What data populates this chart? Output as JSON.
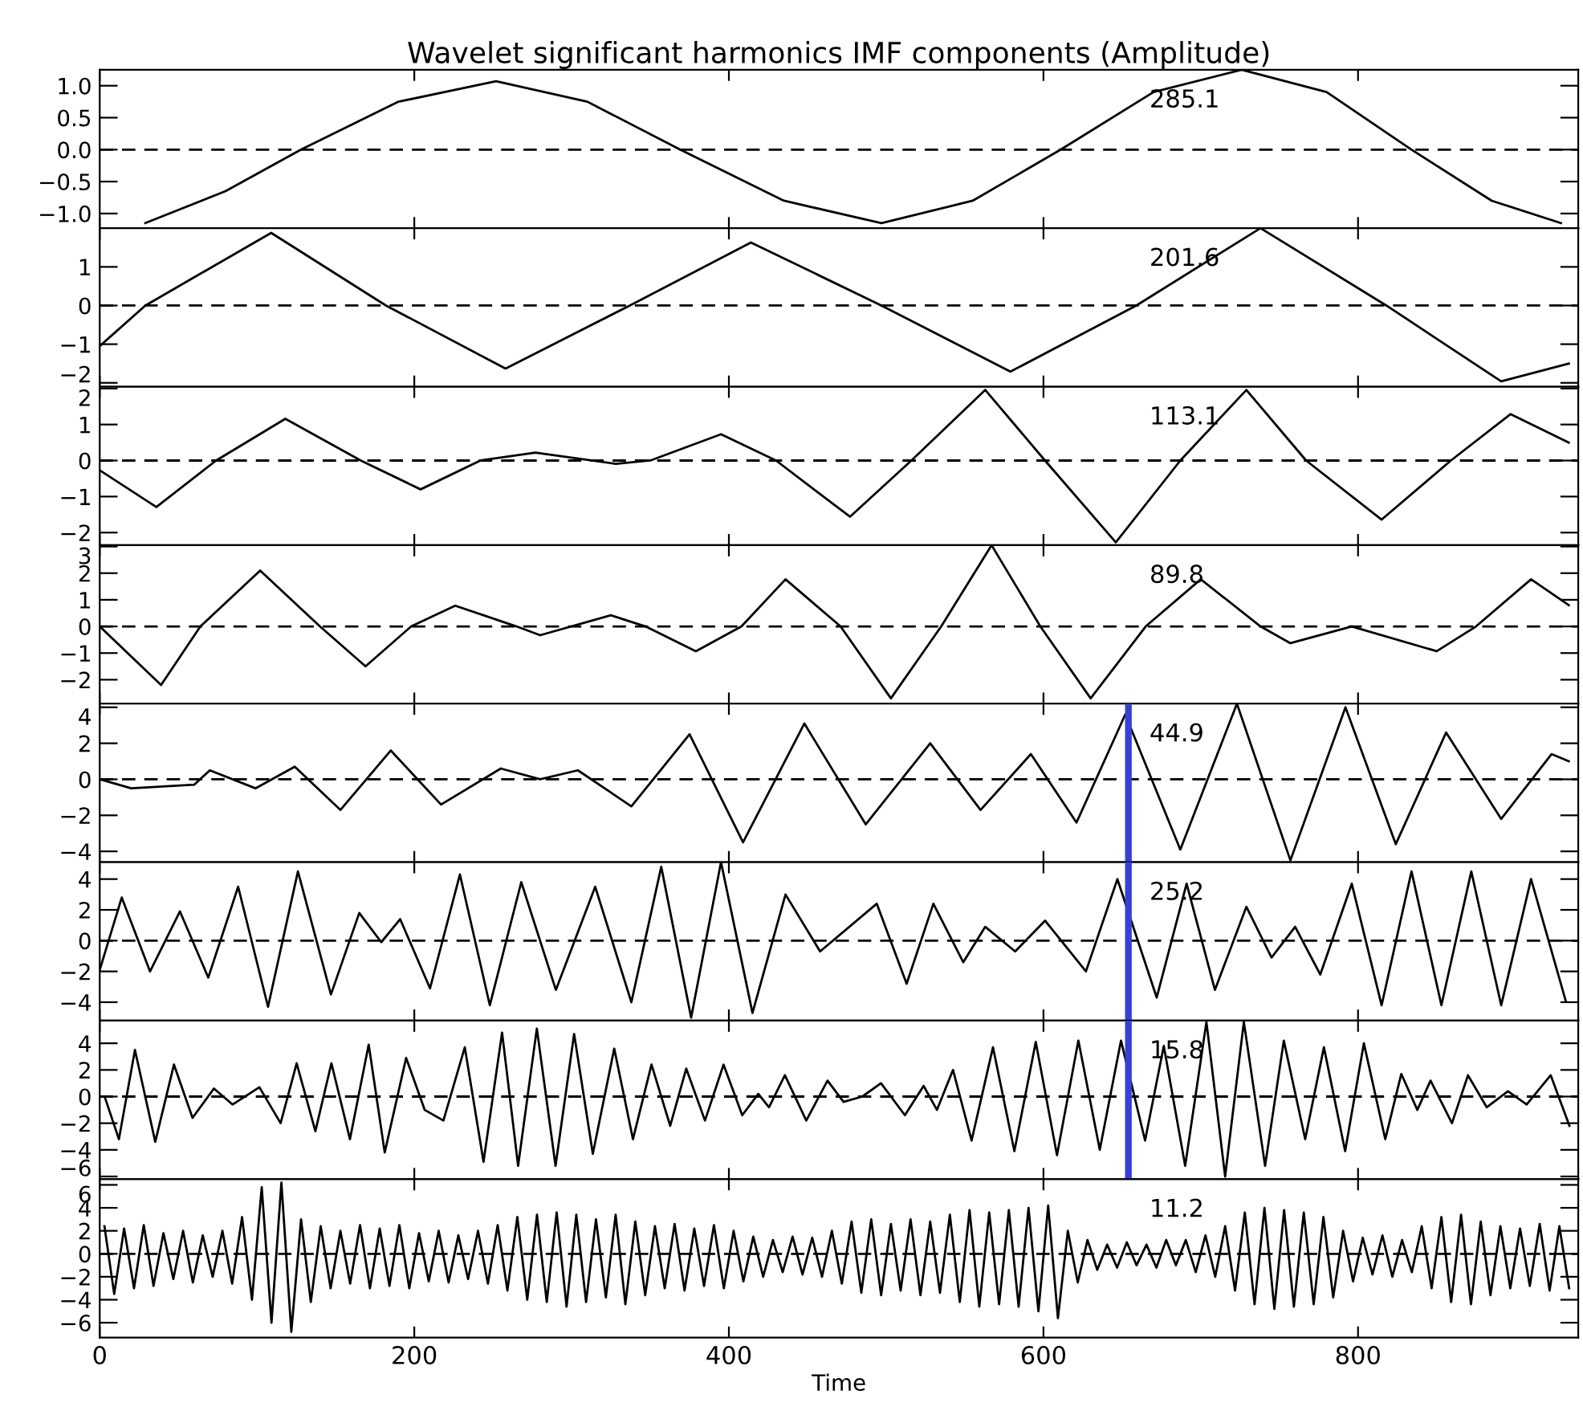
{
  "chart_data": [
    {
      "type": "line",
      "title": "Wavelet significant harmonics IMF components (Amplitude)",
      "annotations": [
        "285.1"
      ],
      "xlim": [
        0,
        940
      ],
      "xticks": [
        0,
        200,
        400,
        600,
        800
      ],
      "ylim": [
        -1.23,
        1.25
      ],
      "yticks": [
        {
          "value": -1.0,
          "label": "−1.0"
        },
        {
          "value": -0.5,
          "label": "−0.5"
        },
        {
          "value": 0,
          "label": "0.0"
        },
        0.5,
        {
          "value": 1,
          "label": "1.0"
        }
      ],
      "tick_labels": "y",
      "ref_lines": [
        {
          "axis": "y",
          "value": 0,
          "color": "#000000",
          "line_style": "dashed"
        }
      ],
      "series": [
        {
          "color": "#000000",
          "x": [
            29,
            80,
            128,
            190,
            252,
            310,
            369,
            435,
            497,
            555,
            611,
            670,
            726,
            780,
            834,
            885,
            929
          ],
          "values": [
            -1.15,
            -0.65,
            0,
            0.75,
            1.07,
            0.75,
            0,
            -0.8,
            -1.15,
            -0.8,
            0,
            0.9,
            1.25,
            0.9,
            0,
            -0.8,
            -1.15
          ]
        }
      ]
    },
    {
      "type": "line",
      "annotations": [
        "201.6"
      ],
      "xlim": [
        0,
        940
      ],
      "xticks": [
        0,
        200,
        400,
        600,
        800
      ],
      "ylim": [
        -2.1,
        2.0
      ],
      "yticks": [
        {
          "value": -2,
          "label": "−2"
        },
        {
          "value": -1,
          "label": "−1"
        },
        0,
        1
      ],
      "tick_labels": "y",
      "ref_lines": [
        {
          "axis": "y",
          "value": 0,
          "color": "#000000",
          "line_style": "dashed"
        }
      ],
      "series": [
        {
          "color": "#000000",
          "x": [
            0,
            29,
            109,
            182,
            258,
            337,
            414,
            497,
            579,
            659,
            738,
            818,
            891,
            934
          ],
          "values": [
            -1.05,
            0,
            1.88,
            0,
            -1.63,
            0,
            1.63,
            0,
            -1.71,
            0,
            2.0,
            0,
            -1.96,
            -1.5
          ]
        }
      ]
    },
    {
      "type": "line",
      "annotations": [
        "113.1"
      ],
      "xlim": [
        0,
        940
      ],
      "xticks": [
        0,
        200,
        400,
        600,
        800
      ],
      "ylim": [
        -2.35,
        2.05
      ],
      "yticks": [
        {
          "value": -2,
          "label": "−2"
        },
        {
          "value": -1,
          "label": "−1"
        },
        0,
        1,
        2
      ],
      "tick_labels": "y",
      "ref_lines": [
        {
          "axis": "y",
          "value": 0,
          "color": "#000000",
          "line_style": "dashed"
        }
      ],
      "series": [
        {
          "color": "#000000",
          "x": [
            0,
            36,
            74,
            118,
            166,
            204,
            242,
            277,
            328,
            350,
            395,
            430,
            477,
            516,
            563,
            601,
            646,
            687,
            729,
            767,
            815,
            859,
            897,
            934
          ],
          "values": [
            -0.27,
            -1.29,
            0,
            1.16,
            0,
            -0.8,
            0,
            0.22,
            -0.09,
            0,
            0.73,
            0,
            -1.56,
            0,
            1.96,
            0,
            -2.27,
            0,
            1.96,
            0,
            -1.64,
            0,
            1.29,
            0.5
          ]
        }
      ]
    },
    {
      "type": "line",
      "annotations": [
        "89.8"
      ],
      "xlim": [
        0,
        940
      ],
      "xticks": [
        0,
        200,
        400,
        600,
        800
      ],
      "ylim": [
        -2.9,
        3.05
      ],
      "yticks": [
        {
          "value": -2,
          "label": "−2"
        },
        {
          "value": -1,
          "label": "−1"
        },
        0,
        1,
        2,
        3
      ],
      "tick_labels": "y",
      "ref_lines": [
        {
          "axis": "y",
          "value": 0,
          "color": "#000000",
          "line_style": "dashed"
        }
      ],
      "series": [
        {
          "color": "#000000",
          "x": [
            0,
            39,
            64,
            102,
            140,
            169,
            198,
            226,
            265,
            280,
            325,
            347,
            379,
            408,
            436,
            471,
            503,
            535,
            567,
            598,
            630,
            665,
            700,
            738,
            757,
            796,
            850,
            875,
            910,
            934
          ],
          "values": [
            0,
            -2.2,
            0,
            2.1,
            0,
            -1.5,
            0,
            0.78,
            0,
            -0.33,
            0.42,
            0,
            -0.93,
            0,
            1.77,
            0,
            -2.7,
            0,
            3.05,
            0,
            -2.7,
            0,
            1.77,
            0,
            -0.63,
            0,
            -0.93,
            0,
            1.77,
            0.8
          ]
        }
      ]
    },
    {
      "type": "line",
      "annotations": [
        "44.9"
      ],
      "xlim": [
        0,
        940
      ],
      "xticks": [
        0,
        200,
        400,
        600,
        800
      ],
      "ylim": [
        -4.6,
        4.2
      ],
      "yticks": [
        {
          "value": -4,
          "label": "−4"
        },
        {
          "value": -2,
          "label": "−2"
        },
        0,
        2,
        4
      ],
      "tick_labels": "y",
      "ref_lines": [
        {
          "axis": "y",
          "value": 0,
          "color": "#000000",
          "line_style": "dashed"
        },
        {
          "axis": "x",
          "value": 654,
          "color": "#3a3fd6",
          "line_style": "solid"
        }
      ],
      "series": [
        {
          "color": "#000000",
          "x": [
            0,
            20,
            60,
            70,
            99,
            124,
            153,
            185,
            217,
            255,
            280,
            304,
            338,
            375,
            409,
            448,
            487,
            528,
            560,
            592,
            621,
            652,
            687,
            723,
            757,
            792,
            824,
            856,
            891,
            923,
            934
          ],
          "values": [
            0,
            -0.5,
            -0.3,
            0.5,
            -0.5,
            0.7,
            -1.7,
            1.6,
            -1.4,
            0.6,
            0,
            0.5,
            -1.5,
            2.5,
            -3.5,
            3.1,
            -2.5,
            2.0,
            -1.7,
            1.4,
            -2.4,
            3.6,
            -3.9,
            4.2,
            -4.5,
            4.0,
            -3.6,
            2.6,
            -2.2,
            1.4,
            1.0
          ]
        }
      ]
    },
    {
      "type": "line",
      "annotations": [
        "25.2"
      ],
      "xlim": [
        0,
        940
      ],
      "xticks": [
        0,
        200,
        400,
        600,
        800
      ],
      "ylim": [
        -5.2,
        5.1
      ],
      "yticks": [
        {
          "value": -4,
          "label": "−4"
        },
        {
          "value": -2,
          "label": "−2"
        },
        0,
        2,
        4
      ],
      "tick_labels": "y",
      "ref_lines": [
        {
          "axis": "y",
          "value": 0,
          "color": "#000000",
          "line_style": "dashed"
        },
        {
          "axis": "x",
          "value": 654,
          "color": "#3a3fd6",
          "line_style": "solid"
        }
      ],
      "series": [
        {
          "color": "#000000",
          "x": [
            0,
            14,
            32,
            51,
            69,
            88,
            107,
            126,
            147,
            165,
            179,
            191,
            210,
            229,
            248,
            268,
            290,
            315,
            338,
            357,
            376,
            395,
            415,
            436,
            458,
            494,
            513,
            530,
            549,
            563,
            582,
            601,
            627,
            647,
            672,
            691,
            709,
            729,
            745,
            760,
            776,
            796,
            815,
            834,
            853,
            872,
            891,
            910,
            932
          ],
          "values": [
            -1.9,
            2.8,
            -2.0,
            1.9,
            -2.4,
            3.5,
            -4.3,
            4.5,
            -3.5,
            1.8,
            -0.1,
            1.4,
            -3.1,
            4.3,
            -4.2,
            3.8,
            -3.2,
            3.5,
            -4.0,
            4.8,
            -5.0,
            5.1,
            -4.7,
            3.0,
            -0.7,
            2.4,
            -2.8,
            2.4,
            -1.4,
            0.9,
            -0.7,
            1.3,
            -2.0,
            4.0,
            -3.7,
            3.7,
            -3.2,
            2.2,
            -1.1,
            0.9,
            -2.2,
            3.7,
            -4.2,
            4.5,
            -4.2,
            4.5,
            -4.2,
            4.0,
            -3.9
          ]
        }
      ]
    },
    {
      "type": "line",
      "annotations": [
        "15.8"
      ],
      "xlim": [
        0,
        940
      ],
      "xticks": [
        0,
        200,
        400,
        600,
        800
      ],
      "ylim": [
        -6.2,
        5.7
      ],
      "yticks": [
        {
          "value": -6,
          "label": "−6"
        },
        {
          "value": -4,
          "label": "−4"
        },
        {
          "value": -2,
          "label": "−2"
        },
        0,
        2,
        4
      ],
      "tick_labels": "y",
      "ref_lines": [
        {
          "axis": "y",
          "value": 0,
          "color": "#000000",
          "line_style": "dashed"
        },
        {
          "axis": "x",
          "value": 654,
          "color": "#3a3fd6",
          "line_style": "solid"
        }
      ],
      "series": [
        {
          "color": "#000000",
          "x": [
            3.1,
            12.2,
            22.4,
            35.3,
            47.2,
            59.0,
            72.6,
            84.5,
            101.5,
            115.0,
            125.2,
            137.1,
            147.3,
            159.1,
            171.0,
            181.2,
            194.8,
            206.6,
            218.5,
            232.1,
            244.0,
            255.8,
            266.0,
            277.9,
            289.8,
            301.6,
            313.5,
            327.1,
            339.0,
            350.8,
            362.7,
            372.9,
            384.8,
            396.6,
            408.5,
            418.7,
            425.5,
            435.6,
            449.2,
            462.7,
            472.9,
            484.8,
            496.7,
            511.9,
            523.8,
            532.3,
            542.5,
            554.3,
            567.9,
            581.5,
            595.1,
            608.6,
            622.2,
            635.8,
            649.3,
            664.6,
            676.5,
            690.1,
            703.6,
            715.5,
            727.4,
            740.9,
            752.8,
            766.4,
            778.3,
            791.8,
            803.7,
            817.3,
            827.5,
            837.7,
            846.1,
            859.7,
            869.9,
            881.8,
            895.3,
            907.2,
            922.5,
            934.4
          ],
          "values": [
            0,
            -3.2,
            3.5,
            -3.4,
            2.4,
            -1.6,
            0.6,
            -0.6,
            0.7,
            -2.0,
            2.5,
            -2.6,
            2.5,
            -3.2,
            3.9,
            -4.2,
            2.9,
            -1.0,
            -1.8,
            3.7,
            -4.9,
            4.8,
            -5.2,
            5.1,
            -5.2,
            4.7,
            -4.3,
            3.6,
            -3.2,
            2.4,
            -2.2,
            2.1,
            -1.8,
            2.4,
            -1.4,
            0.2,
            -0.8,
            1.6,
            -1.8,
            1.2,
            -0.4,
            0,
            1.0,
            -1.4,
            0.8,
            -1.0,
            2.0,
            -3.3,
            3.7,
            -4.1,
            4.1,
            -4.4,
            4.2,
            -4.0,
            4.2,
            -3.3,
            3.8,
            -5.2,
            5.6,
            -6.0,
            5.6,
            -5.2,
            4.2,
            -3.2,
            3.7,
            -4.1,
            4.0,
            -3.2,
            1.7,
            -1.0,
            1.2,
            -2.0,
            1.6,
            -0.8,
            0.4,
            -0.6,
            1.6,
            -2.2
          ]
        }
      ]
    },
    {
      "type": "line",
      "annotations": [
        "11.2"
      ],
      "xlabel": "Time",
      "xlim": [
        0,
        940
      ],
      "xticks": [
        0,
        200,
        400,
        600,
        800
      ],
      "ylim": [
        -7.3,
        6.5
      ],
      "yticks": [
        {
          "value": -6,
          "label": "−6"
        },
        {
          "value": -4,
          "label": "−4"
        },
        {
          "value": -2,
          "label": "−2"
        },
        0,
        2,
        4,
        6
      ],
      "ref_lines": [
        {
          "axis": "y",
          "value": 0,
          "color": "#000000",
          "line_style": "dashed"
        }
      ],
      "series": [
        {
          "color": "#000000",
          "x": [
            3,
            9.2,
            15.5,
            21.8,
            28,
            34.2,
            40.5,
            46.8,
            53,
            59.2,
            65.5,
            71.8,
            78,
            84.2,
            90.5,
            96.8,
            103,
            109.2,
            115.5,
            121.8,
            128,
            134.2,
            140.5,
            146.8,
            153,
            159.2,
            165.5,
            171.8,
            178,
            184.2,
            190.5,
            196.8,
            203,
            209.2,
            215.5,
            221.8,
            228,
            234.2,
            240.5,
            246.8,
            253,
            259.2,
            265.5,
            271.8,
            278,
            284.2,
            290.5,
            296.8,
            303,
            309.2,
            315.5,
            321.8,
            328,
            334.2,
            340.5,
            346.8,
            353,
            359.2,
            365.5,
            371.8,
            378,
            384.2,
            390.5,
            396.8,
            403,
            409.2,
            415.5,
            421.8,
            428,
            434.2,
            440.5,
            446.8,
            453,
            459.2,
            465.5,
            471.8,
            478,
            484.2,
            490.5,
            496.8,
            503,
            509.2,
            515.5,
            521.8,
            528,
            534.2,
            540.5,
            546.8,
            553,
            559.2,
            565.5,
            571.8,
            578,
            584.2,
            590.5,
            596.8,
            603,
            609.2,
            615.5,
            621.8,
            628,
            634.2,
            640.5,
            646.8,
            653,
            659.2,
            665.5,
            671.8,
            678,
            684.2,
            690.5,
            696.8,
            703,
            709.2,
            715.5,
            721.8,
            728,
            734.2,
            740.5,
            746.8,
            753,
            759.2,
            765.5,
            771.8,
            778,
            784.2,
            790.5,
            796.8,
            803,
            809.2,
            815.5,
            821.8,
            828,
            834.2,
            840.5,
            846.8,
            853,
            859.2,
            865.5,
            871.8,
            878,
            884.2,
            890.5,
            896.8,
            903,
            909.2,
            915.5,
            921.8,
            928,
            934.2
          ],
          "values": [
            2.4,
            -3.5,
            2.2,
            -3,
            2.5,
            -2.8,
            1.8,
            -2.2,
            2,
            -2.5,
            1.6,
            -2,
            2,
            -2.6,
            3.2,
            -4,
            5.8,
            -6,
            6.2,
            -6.8,
            3,
            -4.2,
            2.4,
            -3,
            2,
            -2.6,
            2.5,
            -3,
            2.2,
            -2.8,
            2.5,
            -3,
            1.8,
            -2.4,
            2,
            -2.5,
            1.6,
            -2.2,
            2,
            -2.6,
            2.5,
            -3.2,
            3.2,
            -4,
            3.4,
            -4.2,
            3.6,
            -4.6,
            3.4,
            -4.2,
            3,
            -3.8,
            3.4,
            -4.4,
            2.8,
            -3.6,
            2.4,
            -3,
            2.6,
            -3.2,
            2.2,
            -2.8,
            2.5,
            -3,
            2,
            -2.4,
            1.5,
            -2,
            1.2,
            -1.6,
            1.5,
            -1.8,
            1.4,
            -2,
            2,
            -2.6,
            2.8,
            -3.4,
            3,
            -3.6,
            2.6,
            -3.2,
            3,
            -3.6,
            2.8,
            -3.4,
            3.4,
            -4.2,
            3.8,
            -4.6,
            3.6,
            -4.4,
            3.8,
            -4.6,
            4,
            -5,
            4.2,
            -5.6,
            2,
            -2.5,
            1.2,
            -1.4,
            0.8,
            -1.2,
            1,
            -1,
            0.8,
            -1.2,
            1.2,
            -1,
            1.2,
            -1.6,
            1.6,
            -2,
            2.4,
            -3.2,
            3.6,
            -4.4,
            4,
            -4.8,
            3.8,
            -4.6,
            3.6,
            -4.4,
            3.2,
            -3.8,
            2,
            -2.4,
            1.4,
            -1.8,
            1.6,
            -2,
            1.2,
            -1.6,
            2.4,
            -3,
            3.2,
            -4.2,
            3.4,
            -4.4,
            2.8,
            -3.6,
            2.4,
            -3,
            2.2,
            -2.8,
            2.6,
            -3.2,
            2.4,
            -3
          ]
        }
      ]
    }
  ]
}
